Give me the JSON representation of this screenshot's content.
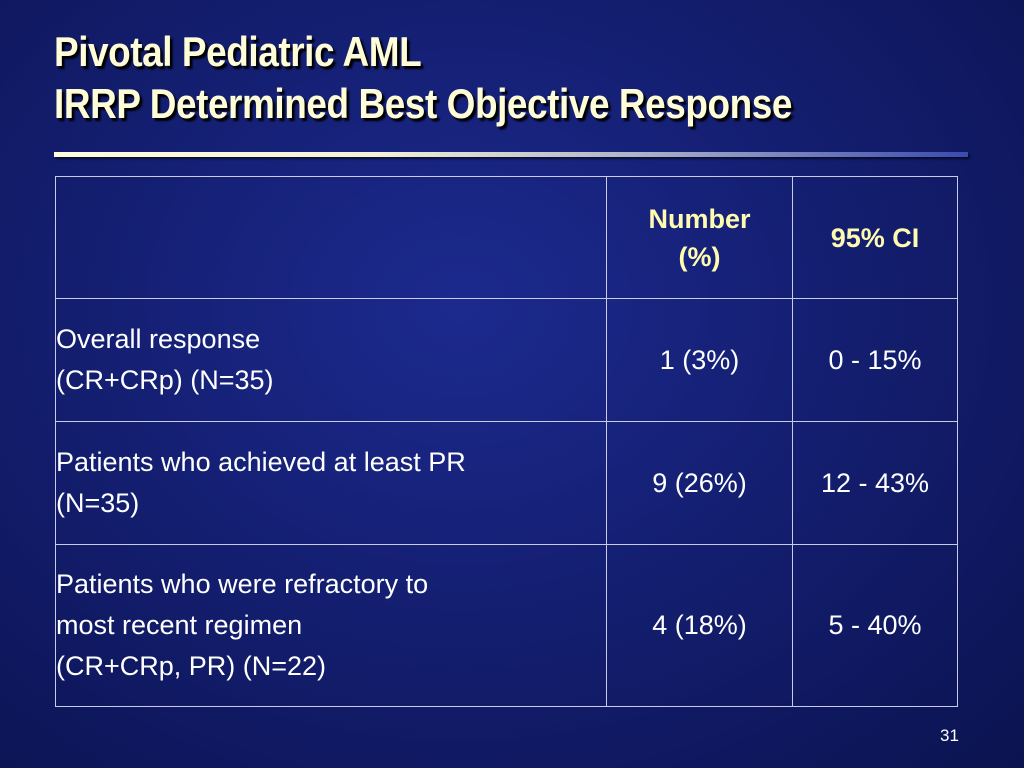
{
  "slide": {
    "title_line1": "Pivotal Pediatric AML",
    "title_line2": "IRRP Determined Best Objective Response",
    "page_number": "31"
  },
  "table": {
    "headers": {
      "blank": "",
      "number_line1": "Number",
      "number_line2": "(%)",
      "ci": "95% CI"
    },
    "rows": [
      {
        "label_lines": [
          "Overall response",
          "(CR+CRp) (N=35)"
        ],
        "number": "1 (3%)",
        "ci": "0 - 15%"
      },
      {
        "label_lines": [
          "Patients who achieved at least PR",
          "(N=35)"
        ],
        "number": "9 (26%)",
        "ci": "12 - 43%"
      },
      {
        "label_lines": [
          "Patients who were refractory to",
          "most recent regimen",
          "(CR+CRp, PR) (N=22)"
        ],
        "number": "4 (18%)",
        "ci": "5 - 40%"
      }
    ]
  },
  "colors": {
    "title_text": "#fffcd8",
    "header_text": "#fffcb0",
    "body_text": "#ffffff",
    "background": "#141f72"
  }
}
